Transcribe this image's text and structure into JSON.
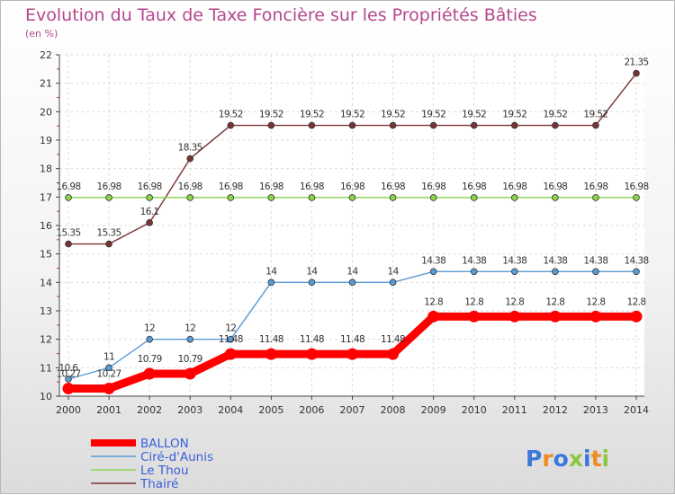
{
  "chart_data": {
    "type": "line",
    "title": "Evolution du Taux de Taxe Foncière sur les Propriétés Bâties",
    "subtitle": "(en %)",
    "xlabel": "",
    "ylabel": "",
    "ylim": [
      10,
      22
    ],
    "yticks": [
      10,
      11,
      12,
      13,
      14,
      15,
      16,
      17,
      18,
      19,
      20,
      21,
      22
    ],
    "categories": [
      "2000",
      "2001",
      "2002",
      "2003",
      "2004",
      "2005",
      "2006",
      "2007",
      "2008",
      "2009",
      "2010",
      "2011",
      "2012",
      "2013",
      "2014"
    ],
    "series": [
      {
        "name": "BALLON",
        "color": "#ff0000",
        "values": [
          10.27,
          10.27,
          10.79,
          10.79,
          11.48,
          11.48,
          11.48,
          11.48,
          11.48,
          12.8,
          12.8,
          12.8,
          12.8,
          12.8,
          12.8
        ],
        "labels": [
          "10.27",
          "10.27",
          "10.79",
          "10.79",
          "11.48",
          "11.48",
          "11.48",
          "11.48",
          "11.48",
          "12.8",
          "12.8",
          "12.8",
          "12.8",
          "12.8",
          "12.8"
        ]
      },
      {
        "name": "Ciré-d'Aunis",
        "color": "#5b9bd5",
        "values": [
          10.6,
          11,
          12,
          12,
          12,
          14,
          14,
          14,
          14,
          14.38,
          14.38,
          14.38,
          14.38,
          14.38,
          14.38
        ],
        "labels": [
          "10.6",
          "11",
          "12",
          "12",
          "12",
          "14",
          "14",
          "14",
          "14",
          "14.38",
          "14.38",
          "14.38",
          "14.38",
          "14.38",
          "14.38"
        ]
      },
      {
        "name": "Le Thou",
        "color": "#8ed44a",
        "values": [
          16.98,
          16.98,
          16.98,
          16.98,
          16.98,
          16.98,
          16.98,
          16.98,
          16.98,
          16.98,
          16.98,
          16.98,
          16.98,
          16.98,
          16.98
        ],
        "labels": [
          "16.98",
          "16.98",
          "16.98",
          "16.98",
          "16.98",
          "16.98",
          "16.98",
          "16.98",
          "16.98",
          "16.98",
          "16.98",
          "16.98",
          "16.98",
          "16.98",
          "16.98"
        ]
      },
      {
        "name": "Thairé",
        "color": "#7a3333",
        "values": [
          15.35,
          15.35,
          16.1,
          18.35,
          19.52,
          19.52,
          19.52,
          19.52,
          19.52,
          19.52,
          19.52,
          19.52,
          19.52,
          19.52,
          21.35
        ],
        "labels": [
          "15.35",
          "15.35",
          "16.1",
          "18.35",
          "19.52",
          "19.52",
          "19.52",
          "19.52",
          "19.52",
          "19.52",
          "19.52",
          "19.52",
          "19.52",
          "19.52",
          "21.35"
        ]
      }
    ]
  },
  "logo": {
    "text": "Proxiti",
    "letters": [
      {
        "ch": "P",
        "color": "#3b78d8"
      },
      {
        "ch": "r",
        "color": "#f08a24"
      },
      {
        "ch": "o",
        "color": "#3b78d8"
      },
      {
        "ch": "x",
        "color": "#8cc63f"
      },
      {
        "ch": "i",
        "color": "#3b78d8"
      },
      {
        "ch": "t",
        "color": "#f08a24"
      },
      {
        "ch": "i",
        "color": "#8cc63f"
      }
    ]
  }
}
